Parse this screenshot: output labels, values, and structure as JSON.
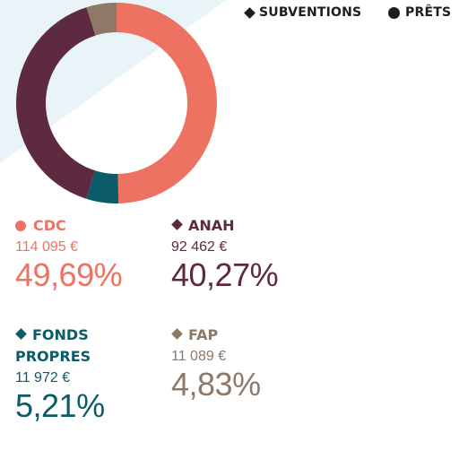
{
  "colors": {
    "background_shape": "#e8f4f8",
    "text_dark": "#1d1d1b"
  },
  "legend": [
    {
      "marker": "diamond",
      "label": "SUBVENTIONS"
    },
    {
      "marker": "dot",
      "label": "PRÊTS"
    }
  ],
  "chart_data": {
    "type": "pie",
    "title": "",
    "slices": [
      {
        "label": "CDC",
        "marker": "dot",
        "amount": "114 095 €",
        "percent_label": "49,69%",
        "value": 49.69,
        "color": "#ee7261"
      },
      {
        "label": "FONDS PROPRES",
        "marker": "diamond",
        "amount": "11 972 €",
        "percent_label": "5,21%",
        "value": 5.21,
        "color": "#0b5b68"
      },
      {
        "label": "ANAH",
        "marker": "diamond",
        "amount": "92 462 €",
        "percent_label": "40,27%",
        "value": 40.27,
        "color": "#5e2a40"
      },
      {
        "label": "FAP",
        "marker": "diamond",
        "amount": "11 089 €",
        "percent_label": "4,83%",
        "value": 4.83,
        "color": "#8d7966"
      }
    ]
  },
  "labels": {
    "cdc": {
      "name": "CDC",
      "amount": "114 095 €",
      "percent": "49,69%"
    },
    "anah": {
      "name": "ANAH",
      "amount": "92 462 €",
      "percent": "40,27%"
    },
    "fonds": {
      "name_line1": "FONDS",
      "name_line2": "PROPRES",
      "amount": "11 972 €",
      "percent": "5,21%"
    },
    "fap": {
      "name": "FAP",
      "amount": "11 089 €",
      "percent": "4,83%"
    }
  }
}
